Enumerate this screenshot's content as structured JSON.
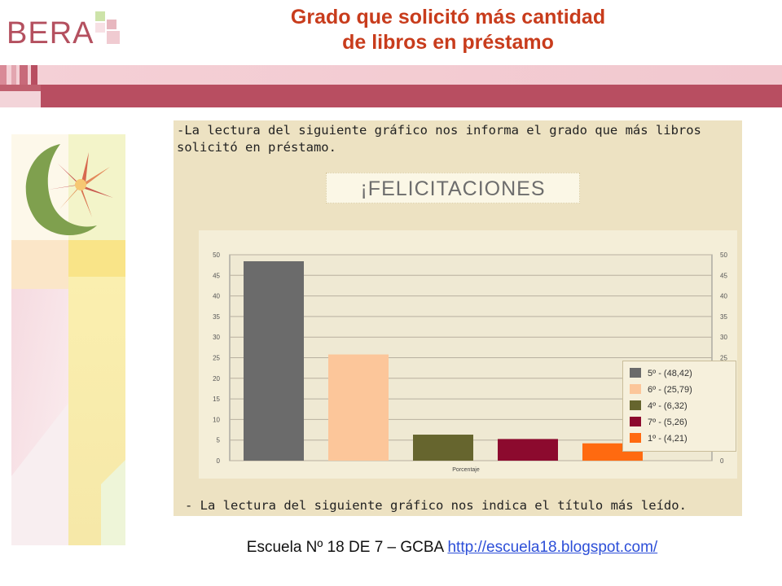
{
  "header": {
    "logo_text": "BERA",
    "title_line1": "Grado que solicitó más cantidad",
    "title_line2": "de libros en préstamo"
  },
  "panel": {
    "intro_line1": "-La lectura del siguiente gráfico nos informa el grado que más libros",
    "intro_line2": "solicitó en préstamo.",
    "banner": "¡FELICITACIONES",
    "outro": "- La lectura del siguiente gráfico nos indica el título más leído."
  },
  "footer": {
    "caption": "Escuela Nº 18 DE 7 – GCBA",
    "link": "http://escuela18.blogspot.com/"
  },
  "chart_data": {
    "type": "bar",
    "categories": [
      "5º",
      "6º",
      "4º",
      "7º",
      "1º"
    ],
    "values": [
      48.42,
      25.79,
      6.32,
      5.26,
      4.21
    ],
    "colors": [
      "#6b6b6b",
      "#fcc69a",
      "#66652e",
      "#8c0a2e",
      "#ff6a10"
    ],
    "xlabel": "Porcentaje",
    "ylim": [
      0,
      50
    ],
    "yticks": [
      0,
      5,
      10,
      15,
      20,
      25,
      30,
      35,
      40,
      45,
      50
    ],
    "grid": true,
    "legend_position": "right",
    "legend": [
      "5º - (48,42)",
      "6º - (25,79)",
      "4º - (6,32)",
      "7º - (5,26)",
      "1º - (4,21)"
    ]
  },
  "colors": {
    "title": "#c83c1c",
    "accent": "#b84e61",
    "panel_bg": "#ede2c2",
    "link": "#2d4fd8"
  }
}
